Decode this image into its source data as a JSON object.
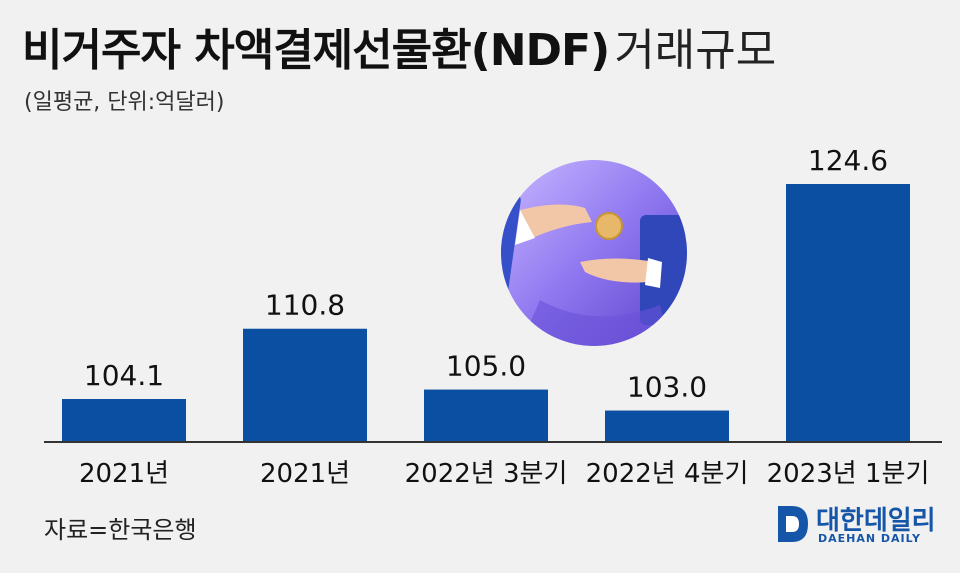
{
  "title": {
    "bold": "비거주자 차액결제선물환(NDF)",
    "light": "거래규모"
  },
  "subtitle": "(일평균, 단위:억달러)",
  "source": "자료=한국은행",
  "logo": {
    "korean": "대한데일리",
    "english": "DAEHAN DAILY"
  },
  "colors": {
    "bar": "#0b4fa3",
    "axis": "#333333",
    "background": "#f1f1f1"
  },
  "illustration": {
    "icon": "hand-passing-coin-illustration"
  },
  "chart_data": {
    "type": "bar",
    "categories": [
      "2021년",
      "2021년",
      "2022년 3분기",
      "2022년 4분기",
      "2023년 1분기"
    ],
    "values": [
      104.1,
      110.8,
      105.0,
      103.0,
      124.6
    ],
    "value_labels": [
      "104.1",
      "110.8",
      "105.0",
      "103.0",
      "124.6"
    ],
    "title": "비거주자 차액결제선물환(NDF) 거래규모",
    "subtitle": "(일평균, 단위:억달러)",
    "xlabel": "",
    "ylabel": "",
    "grid": false,
    "legend": "none"
  }
}
